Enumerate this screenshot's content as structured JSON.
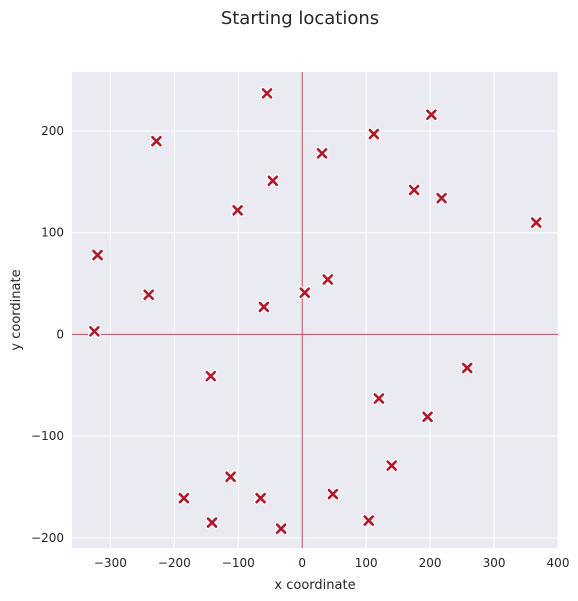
{
  "chart_data": {
    "type": "scatter",
    "title": "Starting locations",
    "xlabel": "x coordinate",
    "ylabel": "y coordinate",
    "xlim": [
      -360,
      400
    ],
    "ylim": [
      -210,
      258
    ],
    "xticks": [
      -300,
      -200,
      -100,
      0,
      100,
      200,
      300,
      400
    ],
    "yticks": [
      -200,
      -100,
      0,
      100,
      200
    ],
    "xtick_labels": [
      "−300",
      "−200",
      "−100",
      "0",
      "100",
      "200",
      "300",
      "400"
    ],
    "ytick_labels": [
      "−200",
      "−100",
      "0",
      "100",
      "200"
    ],
    "grid": true,
    "reference_lines": {
      "x": 0,
      "y": 0
    },
    "colors": {
      "plot_background": "#eaeaf2",
      "grid": "#ffffff",
      "reference_line": "#c44e52",
      "marker_fill": "#b2182b",
      "marker_edge": "#ffffff"
    },
    "marker": "x",
    "points": [
      {
        "x": -55,
        "y": 237
      },
      {
        "x": 202,
        "y": 216
      },
      {
        "x": -228,
        "y": 190
      },
      {
        "x": 112,
        "y": 197
      },
      {
        "x": 31,
        "y": 178
      },
      {
        "x": -46,
        "y": 151
      },
      {
        "x": 175,
        "y": 142
      },
      {
        "x": 218,
        "y": 134
      },
      {
        "x": -101,
        "y": 122
      },
      {
        "x": 366,
        "y": 110
      },
      {
        "x": -320,
        "y": 78
      },
      {
        "x": 40,
        "y": 54
      },
      {
        "x": -240,
        "y": 39
      },
      {
        "x": 4,
        "y": 41
      },
      {
        "x": -60,
        "y": 27
      },
      {
        "x": -325,
        "y": 3
      },
      {
        "x": 258,
        "y": -33
      },
      {
        "x": -143,
        "y": -41
      },
      {
        "x": 120,
        "y": -63
      },
      {
        "x": 196,
        "y": -81
      },
      {
        "x": 140,
        "y": -129
      },
      {
        "x": -112,
        "y": -140
      },
      {
        "x": 48,
        "y": -157
      },
      {
        "x": -185,
        "y": -161
      },
      {
        "x": -65,
        "y": -161
      },
      {
        "x": -141,
        "y": -185
      },
      {
        "x": 104,
        "y": -183
      },
      {
        "x": -33,
        "y": -191
      }
    ]
  }
}
